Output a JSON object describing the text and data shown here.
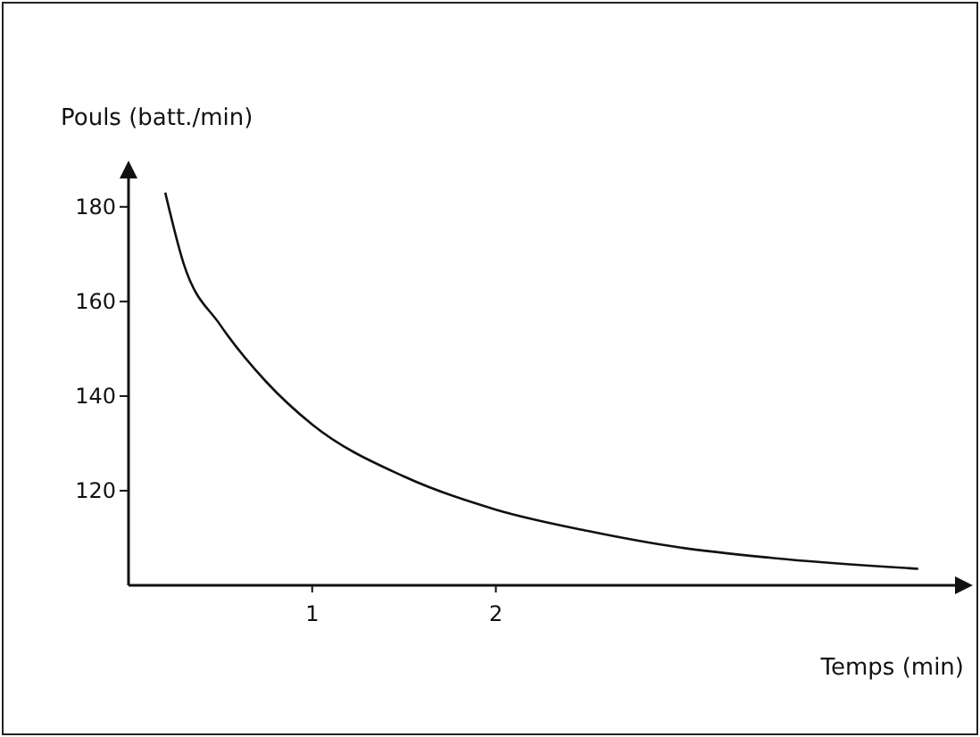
{
  "chart_data": {
    "type": "line",
    "ylabel": "Pouls (batt./min)",
    "xlabel": "Temps (min)",
    "x": [
      0.2,
      0.3,
      0.5,
      0.75,
      1,
      1.5,
      2,
      2.5,
      3,
      3.5,
      4.3
    ],
    "values": [
      183,
      168,
      155,
      143,
      134,
      123,
      116,
      111.5,
      108,
      105.8,
      103.5
    ],
    "color": "#111111",
    "xlim": [
      0,
      4.5
    ],
    "ylim": [
      100,
      186
    ],
    "xticks": [
      1,
      2
    ],
    "yticks": [
      120,
      140,
      160,
      180
    ],
    "grid": false
  }
}
